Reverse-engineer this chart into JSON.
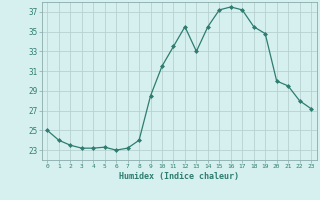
{
  "xlabel": "Humidex (Indice chaleur)",
  "x": [
    0,
    1,
    2,
    3,
    4,
    5,
    6,
    7,
    8,
    9,
    10,
    11,
    12,
    13,
    14,
    15,
    16,
    17,
    18,
    19,
    20,
    21,
    22,
    23
  ],
  "y": [
    25.0,
    24.0,
    23.5,
    23.2,
    23.2,
    23.3,
    23.0,
    23.2,
    24.0,
    28.5,
    31.5,
    33.5,
    35.5,
    33.0,
    35.5,
    37.2,
    37.5,
    37.2,
    35.5,
    34.8,
    30.0,
    29.5,
    28.0,
    27.2
  ],
  "line_color": "#2e7d6e",
  "marker": "D",
  "marker_size": 2.0,
  "bg_color": "#d6f0f0",
  "grid_color": "#b8d0d0",
  "tick_color": "#2e7d6e",
  "ylim": [
    22,
    38
  ],
  "yticks": [
    23,
    25,
    27,
    29,
    31,
    33,
    35,
    37
  ],
  "xlim": [
    -0.5,
    23.5
  ],
  "xticks": [
    0,
    1,
    2,
    3,
    4,
    5,
    6,
    7,
    8,
    9,
    10,
    11,
    12,
    13,
    14,
    15,
    16,
    17,
    18,
    19,
    20,
    21,
    22,
    23
  ]
}
